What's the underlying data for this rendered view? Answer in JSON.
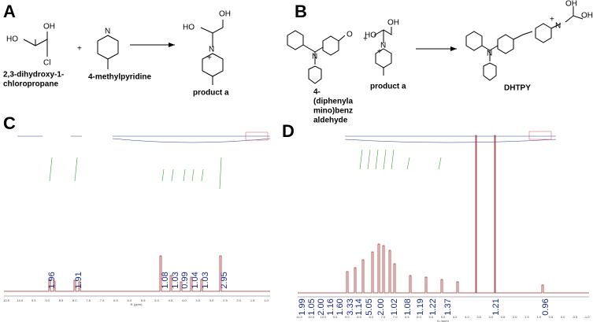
{
  "panels": {
    "a": {
      "label": "A",
      "reactant1": {
        "atoms": [
          "HO",
          "OH",
          "Cl"
        ],
        "name": [
          "2,3-dihydroxy-1-",
          "chloropropane"
        ]
      },
      "plus": "+",
      "reactant2": {
        "name": "4-methylpyridine"
      },
      "product": {
        "atoms": [
          "HO",
          "OH",
          "N",
          "+"
        ],
        "name": "product a"
      }
    },
    "b": {
      "label": "B",
      "reactant1": {
        "atoms": [
          "N",
          "O"
        ],
        "name": [
          "4-",
          "(diphenyla",
          "mino)benz",
          "aldehyde"
        ]
      },
      "plus": "+",
      "reactant2": {
        "atoms": [
          "HO",
          "OH",
          "N",
          "+"
        ],
        "name": "product a"
      },
      "product": {
        "atoms": [
          "N",
          "N",
          "+",
          "OH",
          "OH"
        ],
        "name": "DHTPY"
      }
    },
    "c": {
      "label": "C",
      "integrals": [
        "1.96",
        "1.91",
        "1.08",
        "1.03",
        "0.99",
        "1.04",
        "1.03",
        "2.95"
      ],
      "axis_ticks": [
        "10.5",
        "10.0",
        "9.5",
        "9.0",
        "8.5",
        "8.0",
        "7.5",
        "7.0",
        "6.5",
        "6.0",
        "5.5",
        "5.0",
        "4.5",
        "4.0",
        "3.5",
        "3.0",
        "2.5",
        "2.0",
        "1.5",
        "1.0"
      ],
      "axis_label": "f1 (ppm)"
    },
    "d": {
      "label": "D",
      "integrals": [
        "1.99",
        "1.05",
        "2.00",
        "1.16",
        "1.60",
        "3.33",
        "1.14",
        "5.05",
        "2.00",
        "1.02",
        "1.08",
        "1.19",
        "1.22",
        "1.37",
        "1.21",
        "0.96"
      ],
      "axis_ticks": [
        "11.0",
        "10.5",
        "10.0",
        "9.5",
        "9.0",
        "8.5",
        "8.0",
        "7.5",
        "7.0",
        "6.5",
        "6.0",
        "5.5",
        "5.0",
        "4.5",
        "4.0",
        "3.5",
        "3.0",
        "2.5",
        "2.0",
        "1.5",
        "1.0",
        "0.5",
        "0.0",
        "-0.5",
        "-1.0"
      ],
      "axis_label": "f1 (ppm)"
    }
  }
}
